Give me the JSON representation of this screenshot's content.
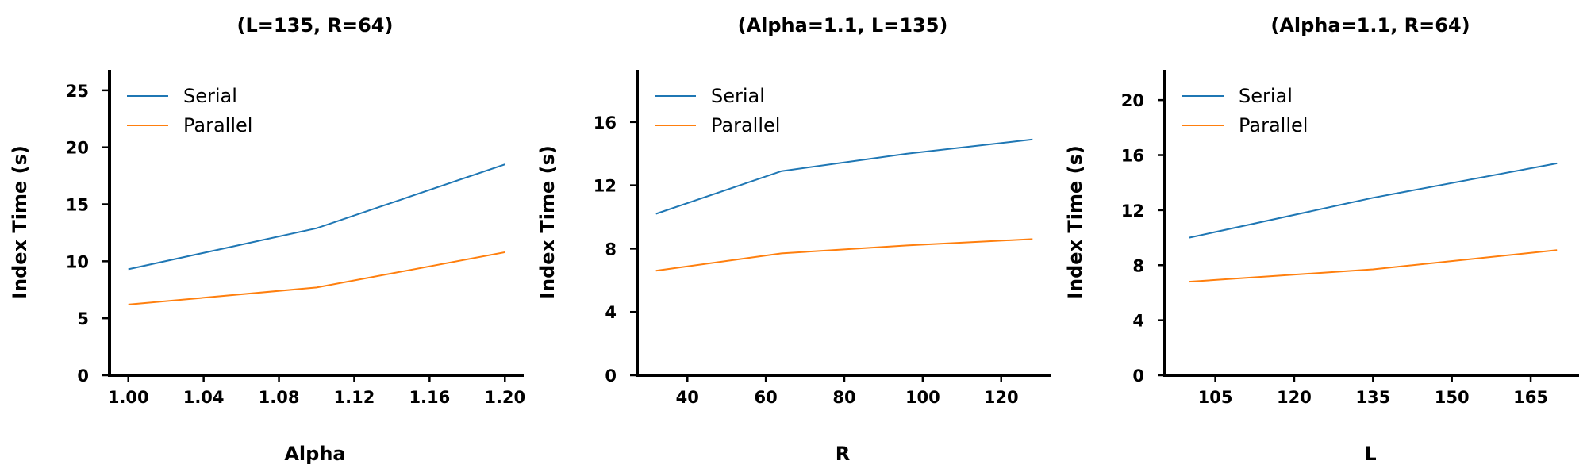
{
  "colors": {
    "serial": "#1f77b4",
    "parallel": "#ff7f0e",
    "axis": "#000000"
  },
  "chart_data": [
    {
      "type": "line",
      "title": "(L=135, R=64)",
      "xlabel": "Alpha",
      "ylabel": "Index Time (s)",
      "x": [
        1.0,
        1.1,
        1.2
      ],
      "xlim": [
        0.99,
        1.21
      ],
      "ylim": [
        0,
        26.8
      ],
      "xticks": [
        1.0,
        1.04,
        1.08,
        1.12,
        1.16,
        1.2
      ],
      "xtick_labels": [
        "1.00",
        "1.04",
        "1.08",
        "1.12",
        "1.16",
        "1.20"
      ],
      "yticks": [
        0,
        5,
        10,
        15,
        20,
        25
      ],
      "ytick_labels": [
        "0",
        "5",
        "10",
        "15",
        "20",
        "25"
      ],
      "series": [
        {
          "name": "Serial",
          "color_key": "serial",
          "values": [
            9.3,
            12.9,
            18.5
          ]
        },
        {
          "name": "Parallel",
          "color_key": "parallel",
          "values": [
            6.2,
            7.7,
            10.8
          ]
        }
      ],
      "legend": "top-left",
      "grid": false
    },
    {
      "type": "line",
      "title": "(Alpha=1.1, L=135)",
      "xlabel": "R",
      "ylabel": "Index Time (s)",
      "x": [
        32,
        64,
        96,
        128
      ],
      "xlim": [
        27.2,
        132.8
      ],
      "ylim": [
        0,
        19.3
      ],
      "xticks": [
        40,
        60,
        80,
        100,
        120
      ],
      "xtick_labels": [
        "40",
        "60",
        "80",
        "100",
        "120"
      ],
      "yticks": [
        0,
        4,
        8,
        12,
        16
      ],
      "ytick_labels": [
        "0",
        "4",
        "8",
        "12",
        "16"
      ],
      "series": [
        {
          "name": "Serial",
          "color_key": "serial",
          "values": [
            10.2,
            12.9,
            14.0,
            14.9
          ]
        },
        {
          "name": "Parallel",
          "color_key": "parallel",
          "values": [
            6.6,
            7.7,
            8.2,
            8.6
          ]
        }
      ],
      "legend": "top-left",
      "grid": false
    },
    {
      "type": "line",
      "title": "(Alpha=1.1, R=64)",
      "xlabel": "L",
      "ylabel": "Index Time (s)",
      "x": [
        100,
        135,
        170
      ],
      "xlim": [
        95.4,
        174.2
      ],
      "ylim": [
        0,
        22.2
      ],
      "xticks": [
        105,
        120,
        135,
        150,
        165
      ],
      "xtick_labels": [
        "105",
        "120",
        "135",
        "150",
        "165"
      ],
      "yticks": [
        0,
        4,
        8,
        12,
        16,
        20
      ],
      "ytick_labels": [
        "0",
        "4",
        "8",
        "12",
        "16",
        "20"
      ],
      "series": [
        {
          "name": "Serial",
          "color_key": "serial",
          "values": [
            10.0,
            12.9,
            15.4
          ]
        },
        {
          "name": "Parallel",
          "color_key": "parallel",
          "values": [
            6.8,
            7.7,
            9.1
          ]
        }
      ],
      "legend": "top-left",
      "grid": false
    }
  ]
}
